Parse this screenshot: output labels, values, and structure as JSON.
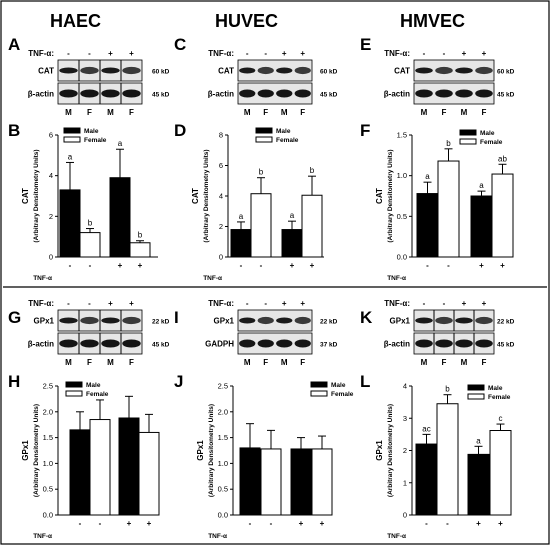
{
  "columns": [
    "HAEC",
    "HUVEC",
    "HMVEC"
  ],
  "ylabel_sub": "(Arbitrary Densitometry Units)",
  "tnf_label": "TNF-α",
  "tnf_label_colon": "TNF-α:",
  "tnf_signs": [
    "-",
    "-",
    "+",
    "+"
  ],
  "sex_labels": [
    "M",
    "F",
    "M",
    "F"
  ],
  "legend": {
    "male": "Male",
    "female": "Female"
  },
  "blots": [
    {
      "letter": "A",
      "top": "CAT",
      "top_kd": "60 kD",
      "bottom": "β-actin",
      "bottom_kd": "45 kD"
    },
    {
      "letter": "C",
      "top": "CAT",
      "top_kd": "60 kD",
      "bottom": "β-actin",
      "bottom_kd": "45 kD"
    },
    {
      "letter": "E",
      "top": "CAT",
      "top_kd": "60 kD",
      "bottom": "β-actin",
      "bottom_kd": "45 kD"
    },
    {
      "letter": "G",
      "top": "GPx1",
      "top_kd": "22 kD",
      "bottom": "β-actin",
      "bottom_kd": "45 kD"
    },
    {
      "letter": "I",
      "top": "GPx1",
      "top_kd": "22 kD",
      "bottom": "GADPH",
      "bottom_kd": "37 kD"
    },
    {
      "letter": "K",
      "top": "GPx1",
      "top_kd": "22 kD",
      "bottom": "β-actin",
      "bottom_kd": "45 kD"
    }
  ],
  "chart_data": [
    {
      "letter": "B",
      "type": "bar",
      "ylabel": "CAT",
      "ylim": [
        0,
        6
      ],
      "ticks": [
        "0",
        "2",
        "4",
        "6"
      ],
      "values": [
        3.3,
        1.2,
        3.9,
        0.7
      ],
      "errors": [
        1.35,
        0.2,
        1.4,
        0.1
      ],
      "sig": [
        "a",
        "b",
        "a",
        "b"
      ]
    },
    {
      "letter": "D",
      "type": "bar",
      "ylabel": "CAT",
      "ylim": [
        0,
        8
      ],
      "ticks": [
        "0",
        "2",
        "4",
        "6",
        "8"
      ],
      "values": [
        1.8,
        4.15,
        1.8,
        4.05
      ],
      "errors": [
        0.5,
        1.05,
        0.55,
        1.25
      ],
      "sig": [
        "a",
        "b",
        "a",
        "b"
      ]
    },
    {
      "letter": "F",
      "type": "bar",
      "ylabel": "CAT",
      "ylim": [
        0,
        1.5
      ],
      "ticks": [
        "0.0",
        "0.5",
        "1.0",
        "1.5"
      ],
      "values": [
        0.78,
        1.18,
        0.75,
        1.02
      ],
      "errors": [
        0.14,
        0.15,
        0.06,
        0.12
      ],
      "sig": [
        "a",
        "b",
        "a",
        "ab"
      ]
    },
    {
      "letter": "H",
      "type": "bar",
      "ylabel": "GPx1",
      "ylim": [
        0,
        2.5
      ],
      "ticks": [
        "0.0",
        "0.5",
        "1.0",
        "1.5",
        "2.0",
        "2.5"
      ],
      "values": [
        1.65,
        1.85,
        1.88,
        1.6
      ],
      "errors": [
        0.35,
        0.38,
        0.42,
        0.35
      ],
      "sig": [
        "",
        "",
        "",
        ""
      ]
    },
    {
      "letter": "J",
      "type": "bar",
      "ylabel": "GPx1",
      "ylim": [
        0,
        2.5
      ],
      "ticks": [
        "0.0",
        "0.5",
        "1.0",
        "1.5",
        "2.0",
        "2.5"
      ],
      "values": [
        1.3,
        1.28,
        1.28,
        1.28
      ],
      "errors": [
        0.47,
        0.36,
        0.22,
        0.25
      ],
      "sig": [
        "",
        "",
        "",
        ""
      ]
    },
    {
      "letter": "L",
      "type": "bar",
      "ylabel": "GPx1",
      "ylim": [
        0,
        4
      ],
      "ticks": [
        "0",
        "1",
        "2",
        "3",
        "4"
      ],
      "values": [
        2.2,
        3.45,
        1.88,
        2.62
      ],
      "errors": [
        0.3,
        0.28,
        0.25,
        0.2
      ],
      "sig": [
        "ac",
        "b",
        "a",
        "c"
      ]
    }
  ]
}
